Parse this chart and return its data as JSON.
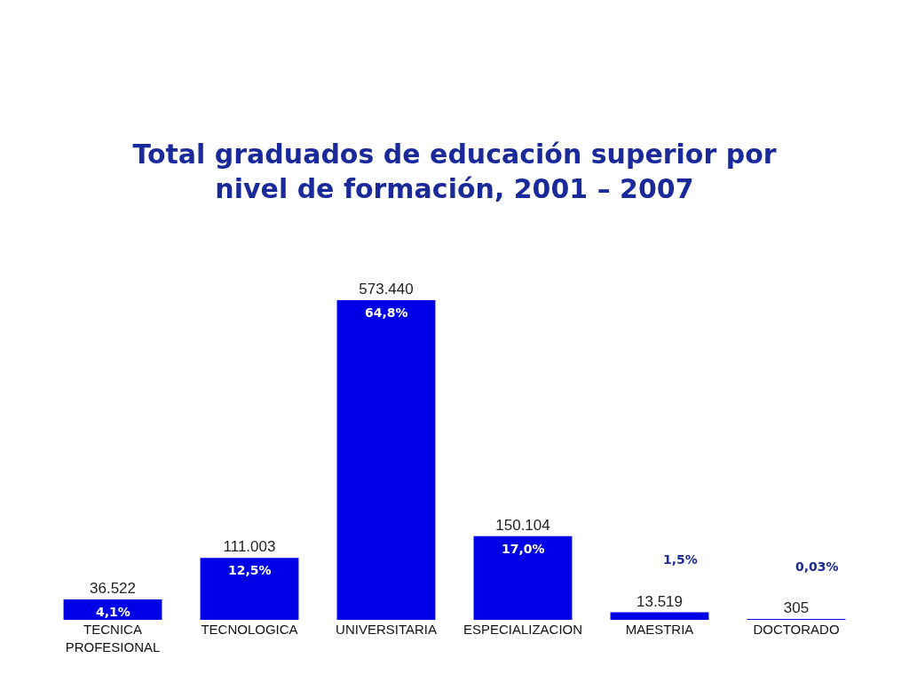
{
  "chart_data": {
    "type": "bar",
    "title": "Total graduados de educación superior por nivel de formación, 2001 – 2007",
    "categories": [
      "TECNICA PROFESIONAL",
      "TECNOLOGICA",
      "UNIVERSITARIA",
      "ESPECIALIZACION",
      "MAESTRIA",
      "DOCTORADO"
    ],
    "values": [
      36522,
      111003,
      573440,
      150104,
      13519,
      305
    ],
    "value_labels": [
      "36.522",
      "111.003",
      "573.440",
      "150.104",
      "13.519",
      "305"
    ],
    "color": "#0000e6",
    "annotations": [
      "4,1%",
      "12,5%",
      "64,8%",
      "17,0%",
      "1,5%",
      "0,03%"
    ],
    "legend": false
  }
}
